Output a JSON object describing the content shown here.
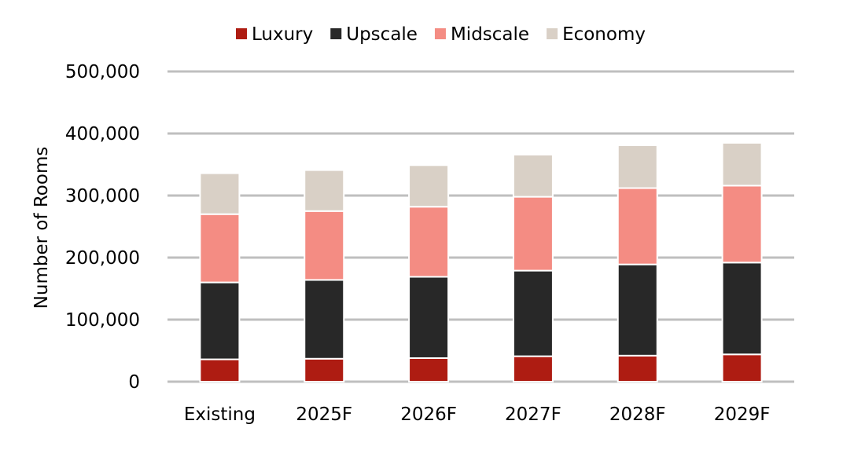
{
  "chart_data": {
    "type": "bar",
    "stacked": true,
    "title": "",
    "xlabel": "",
    "ylabel": "Number of Rooms",
    "ylim": [
      0,
      500000
    ],
    "yticks": [
      0,
      100000,
      200000,
      300000,
      400000,
      500000
    ],
    "ytick_labels": [
      "0",
      "100,000",
      "200,000",
      "300,000",
      "400,000",
      "500,000"
    ],
    "grid": true,
    "legend_position": "top",
    "categories": [
      "Existing",
      "2025F",
      "2026F",
      "2027F",
      "2028F",
      "2029F"
    ],
    "series": [
      {
        "name": "Luxury",
        "color": "#ae1c12",
        "values": [
          36000,
          37000,
          38000,
          41000,
          42000,
          44000
        ]
      },
      {
        "name": "Upscale",
        "color": "#282828",
        "values": [
          124000,
          127000,
          131000,
          138000,
          147000,
          148000
        ]
      },
      {
        "name": "Midscale",
        "color": "#f48c83",
        "values": [
          110000,
          111000,
          113000,
          119000,
          123000,
          124000
        ]
      },
      {
        "name": "Economy",
        "color": "#d9d0c6",
        "values": [
          66000,
          66000,
          67000,
          68000,
          69000,
          69000
        ]
      }
    ]
  }
}
